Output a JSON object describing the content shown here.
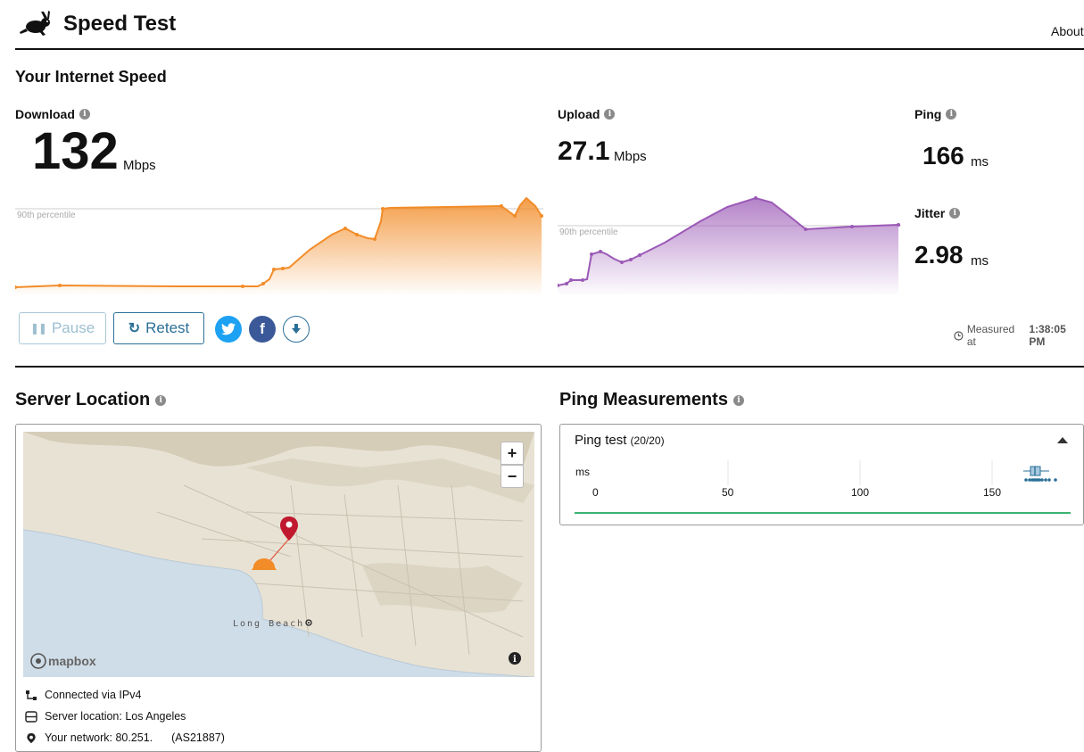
{
  "header": {
    "title": "Speed Test",
    "about_label": "About"
  },
  "section_speed": {
    "title": "Your Internet Speed"
  },
  "download": {
    "label": "Download",
    "value": "132",
    "unit": "Mbps",
    "percentile_label": "90th percentile"
  },
  "upload": {
    "label": "Upload",
    "value": "27.1",
    "unit": "Mbps",
    "percentile_label": "90th percentile"
  },
  "ping": {
    "label": "Ping",
    "value": "166",
    "unit": "ms"
  },
  "jitter": {
    "label": "Jitter",
    "value": "2.98",
    "unit": "ms"
  },
  "controls": {
    "pause_label": "Pause",
    "retest_label": "Retest"
  },
  "measured": {
    "prefix": "Measured at",
    "time": "1:38:05 PM"
  },
  "server_location": {
    "title": "Server Location",
    "map_city_label": "Long Beach",
    "mapbox_label": "mapbox",
    "zoom_in": "+",
    "zoom_out": "−",
    "connection": "Connected via IPv4",
    "server": "Server location: Los Angeles",
    "network": "Your network: 80.251.        (AS21887)"
  },
  "ping_measurements": {
    "title": "Ping Measurements",
    "test_label": "Ping test",
    "test_count": "(20/20)",
    "axis_unit": "ms",
    "ticks": [
      "0",
      "50",
      "100",
      "150"
    ]
  },
  "colors": {
    "download": "#f28c28",
    "upload": "#9b59b6",
    "accent": "#2a6f97",
    "twitter": "#1da1f2",
    "facebook": "#3b5998",
    "ping_line": "#3cb371"
  },
  "icons": [
    "rabbit-logo-icon",
    "info-icon",
    "pause-icon",
    "retest-icon",
    "twitter-icon",
    "facebook-icon",
    "download-results-icon",
    "clock-icon",
    "connection-icon",
    "server-icon",
    "location-pin-icon",
    "collapse-arrow-icon"
  ]
}
